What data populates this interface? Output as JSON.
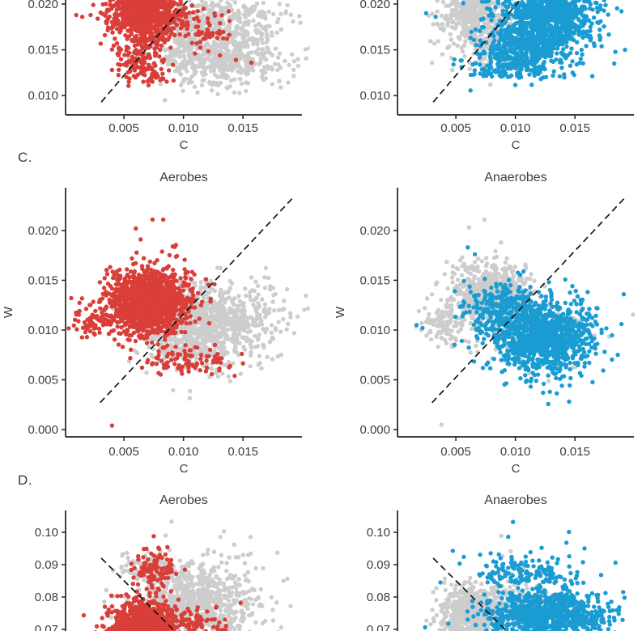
{
  "page": {
    "background": "#ffffff"
  },
  "panel_labels": {
    "c": "C.",
    "d": "D."
  },
  "colors": {
    "aerobes": "#d93e38",
    "anaerobes": "#1a9cd3",
    "background_points": "#cdcdcd",
    "reference_line": "#141414",
    "axis": "#222222",
    "text": "#3d3d3d"
  },
  "chart_data": [
    {
      "id": "top_left",
      "row": "top",
      "type": "scatter",
      "title": "",
      "xlabel": "C",
      "ylabel": "",
      "xlim": [
        0.0001,
        0.01995
      ],
      "ylim": [
        0.0079,
        0.02044
      ],
      "xticks": {
        "values": [
          0.005,
          0.01,
          0.015
        ],
        "labels": [
          "0.005",
          "0.010",
          "0.015"
        ]
      },
      "yticks": {
        "values": [
          0.02,
          0.015,
          0.01
        ],
        "labels": [
          "0.020",
          "0.015",
          "0.010"
        ]
      },
      "refline": {
        "x1": 0.0031,
        "y1": 0.0093,
        "x2": 0.0105,
        "y2": 0.0206
      },
      "clusters": [
        {
          "color": "background_points",
          "n": 500,
          "cx": 0.0112,
          "cy": 0.0172,
          "sx": 0.0019,
          "sy": 0.0021
        },
        {
          "color": "background_points",
          "n": 350,
          "cx": 0.0134,
          "cy": 0.0137,
          "sx": 0.0023,
          "sy": 0.0015
        },
        {
          "color": "background_points",
          "n": 150,
          "cx": 0.016,
          "cy": 0.0172,
          "sx": 0.0019,
          "sy": 0.0018
        },
        {
          "color": "background_points",
          "pts": [
            [
              0.0186,
              0.019
            ],
            [
              0.0192,
              0.0181
            ],
            [
              0.0179,
              0.0128
            ],
            [
              0.0171,
              0.015
            ],
            [
              0.0191,
              0.0145
            ]
          ]
        },
        {
          "color": "aerobes",
          "n": 1200,
          "cx": 0.0068,
          "cy": 0.0197,
          "sx": 0.0014,
          "sy": 0.0019
        },
        {
          "color": "aerobes",
          "n": 130,
          "cx": 0.0063,
          "cy": 0.0143,
          "sx": 0.0012,
          "sy": 0.0013
        },
        {
          "color": "aerobes",
          "n": 60,
          "cx": 0.0118,
          "cy": 0.0172,
          "sx": 0.0013,
          "sy": 0.001
        },
        {
          "color": "aerobes",
          "n": 25,
          "cx": 0.0074,
          "cy": 0.0121,
          "sx": 0.0007,
          "sy": 0.0005
        },
        {
          "color": "aerobes",
          "pts": [
            [
              0.001,
              0.0188
            ],
            [
              0.0015,
              0.0186
            ],
            [
              0.0022,
              0.0188
            ],
            [
              0.0028,
              0.0184
            ],
            [
              0.0036,
              0.0182
            ],
            [
              0.0144,
              0.0139
            ],
            [
              0.0157,
              0.0136
            ],
            [
              0.0138,
              0.0192
            ],
            [
              0.004,
              0.0128
            ]
          ]
        }
      ]
    },
    {
      "id": "top_right",
      "row": "top",
      "type": "scatter",
      "title": "",
      "xlabel": "C",
      "ylabel": "",
      "xlim": [
        0.0001,
        0.01995
      ],
      "ylim": [
        0.0079,
        0.02044
      ],
      "xticks": {
        "values": [
          0.005,
          0.01,
          0.015
        ],
        "labels": [
          "0.005",
          "0.010",
          "0.015"
        ]
      },
      "yticks": {
        "values": [
          0.02,
          0.015,
          0.01
        ],
        "labels": [
          "0.020",
          "0.015",
          "0.010"
        ]
      },
      "refline": {
        "x1": 0.0031,
        "y1": 0.0093,
        "x2": 0.0105,
        "y2": 0.0206
      },
      "clusters": [
        {
          "color": "background_points",
          "n": 420,
          "cx": 0.0066,
          "cy": 0.0187,
          "sx": 0.0013,
          "sy": 0.0015
        },
        {
          "color": "background_points",
          "n": 160,
          "cx": 0.0082,
          "cy": 0.015,
          "sx": 0.0016,
          "sy": 0.0013
        },
        {
          "color": "background_points",
          "pts": [
            [
              0.0031,
              0.0178
            ],
            [
              0.0043,
              0.0152
            ],
            [
              0.0047,
              0.0128
            ],
            [
              0.0079,
              0.0112
            ],
            [
              0.003,
              0.0136
            ]
          ]
        },
        {
          "color": "anaerobes",
          "n": 1000,
          "cx": 0.0126,
          "cy": 0.0183,
          "sx": 0.0021,
          "sy": 0.0022
        },
        {
          "color": "anaerobes",
          "n": 280,
          "cx": 0.0104,
          "cy": 0.0151,
          "sx": 0.0019,
          "sy": 0.0013
        },
        {
          "color": "anaerobes",
          "n": 110,
          "cx": 0.0096,
          "cy": 0.0129,
          "sx": 0.0019,
          "sy": 0.0007
        },
        {
          "color": "anaerobes",
          "pts": [
            [
              0.0025,
              0.019
            ],
            [
              0.0033,
              0.0186
            ],
            [
              0.0189,
              0.0192
            ],
            [
              0.0192,
              0.015
            ],
            [
              0.0048,
              0.0134
            ],
            [
              0.0183,
              0.0135
            ]
          ]
        }
      ]
    },
    {
      "id": "c_aerobes",
      "row": "c",
      "type": "scatter",
      "title": "Aerobes",
      "xlabel": "C",
      "ylabel": "W",
      "xlim": [
        0.0001,
        0.01995
      ],
      "ylim": [
        -0.00073,
        0.0243
      ],
      "xticks": {
        "values": [
          0.005,
          0.01,
          0.015
        ],
        "labels": [
          "0.005",
          "0.010",
          "0.015"
        ]
      },
      "yticks": {
        "values": [
          0.02,
          0.015,
          0.01,
          0.005,
          0.0
        ],
        "labels": [
          "0.020",
          "0.015",
          "0.010",
          "0.005",
          "0.000"
        ]
      },
      "refline": {
        "x1": 0.003,
        "y1": 0.0027,
        "x2": 0.0192,
        "y2": 0.0233
      },
      "clusters": [
        {
          "color": "background_points",
          "n": 950,
          "cx": 0.0114,
          "cy": 0.0104,
          "sx": 0.0023,
          "sy": 0.002
        },
        {
          "color": "background_points",
          "n": 120,
          "cx": 0.0162,
          "cy": 0.0112,
          "sx": 0.0017,
          "sy": 0.0017
        },
        {
          "color": "background_points",
          "pts": [
            [
              0.019,
              0.0113
            ],
            [
              0.0193,
              0.0097
            ],
            [
              0.0187,
              0.0141
            ],
            [
              0.0148,
              0.0056
            ],
            [
              0.0182,
              0.0075
            ]
          ]
        },
        {
          "color": "aerobes",
          "n": 1400,
          "cx": 0.0071,
          "cy": 0.0128,
          "sx": 0.0016,
          "sy": 0.0016
        },
        {
          "color": "aerobes",
          "n": 60,
          "cx": 0.0023,
          "cy": 0.0112,
          "sx": 0.0008,
          "sy": 0.0009
        },
        {
          "color": "aerobes",
          "n": 90,
          "cx": 0.0104,
          "cy": 0.0069,
          "sx": 0.0018,
          "sy": 0.0008
        },
        {
          "color": "aerobes",
          "pts": [
            [
              0.004,
              0.0004
            ],
            [
              0.006,
              0.0202
            ],
            [
              0.0074,
              0.0211
            ],
            [
              0.0083,
              0.0211
            ],
            [
              0.0064,
              0.0191
            ],
            [
              0.0143,
              0.0054
            ],
            [
              0.0119,
              0.0151
            ],
            [
              0.0126,
              0.0146
            ],
            [
              0.0149,
              0.0076
            ],
            [
              0.0091,
              0.0184
            ]
          ]
        }
      ]
    },
    {
      "id": "c_anaerobes",
      "row": "c",
      "type": "scatter",
      "title": "Anaerobes",
      "xlabel": "C",
      "ylabel": "W",
      "xlim": [
        0.0001,
        0.01995
      ],
      "ylim": [
        -0.00073,
        0.0243
      ],
      "xticks": {
        "values": [
          0.005,
          0.01,
          0.015
        ],
        "labels": [
          "0.005",
          "0.010",
          "0.015"
        ]
      },
      "yticks": {
        "values": [
          0.02,
          0.015,
          0.01,
          0.005,
          0.0
        ],
        "labels": [
          "0.020",
          "0.015",
          "0.010",
          "0.005",
          "0.000"
        ]
      },
      "refline": {
        "x1": 0.003,
        "y1": 0.0027,
        "x2": 0.0192,
        "y2": 0.0233
      },
      "clusters": [
        {
          "color": "background_points",
          "n": 600,
          "cx": 0.0079,
          "cy": 0.0137,
          "sx": 0.0015,
          "sy": 0.0015
        },
        {
          "color": "background_points",
          "n": 120,
          "cx": 0.0044,
          "cy": 0.0105,
          "sx": 0.001,
          "sy": 0.0012
        },
        {
          "color": "background_points",
          "n": 150,
          "cx": 0.0124,
          "cy": 0.0097,
          "sx": 0.0021,
          "sy": 0.0017
        },
        {
          "color": "background_points",
          "pts": [
            [
              0.0038,
              0.0005
            ],
            [
              0.0074,
              0.0211
            ],
            [
              0.0061,
              0.0203
            ],
            [
              0.0088,
              0.0188
            ],
            [
              0.0019,
              0.0119
            ],
            [
              0.0024,
              0.0122
            ],
            [
              0.0021,
              0.01
            ]
          ]
        },
        {
          "color": "anaerobes",
          "n": 1100,
          "cx": 0.0123,
          "cy": 0.0093,
          "sx": 0.0021,
          "sy": 0.0018
        },
        {
          "color": "anaerobes",
          "n": 220,
          "cx": 0.0089,
          "cy": 0.0124,
          "sx": 0.0017,
          "sy": 0.0013
        },
        {
          "color": "anaerobes",
          "pts": [
            [
              0.0017,
              0.0105
            ],
            [
              0.0022,
              0.0102
            ],
            [
              0.0191,
              0.0136
            ],
            [
              0.0189,
              0.0106
            ],
            [
              0.0186,
              0.0075
            ],
            [
              0.006,
              0.0183
            ],
            [
              0.0066,
              0.0176
            ]
          ]
        }
      ]
    },
    {
      "id": "d_aerobes",
      "row": "d",
      "type": "scatter",
      "title": "Aerobes",
      "xlabel": "",
      "ylabel": "",
      "xlim": [
        0.0001,
        0.01995
      ],
      "ylim": [
        0.0695,
        0.10675
      ],
      "xticks": {
        "values": [],
        "labels": []
      },
      "yticks": {
        "values": [
          0.1,
          0.09,
          0.08,
          0.07
        ],
        "labels": [
          "0.10",
          "0.09",
          "0.08",
          "0.07"
        ]
      },
      "refline": {
        "x1": 0.0031,
        "y1": 0.092,
        "x2": 0.0094,
        "y2": 0.069
      },
      "clusters": [
        {
          "color": "background_points",
          "n": 800,
          "cx": 0.0112,
          "cy": 0.079,
          "sx": 0.0025,
          "sy": 0.0062
        },
        {
          "color": "background_points",
          "n": 60,
          "cx": 0.0068,
          "cy": 0.0898,
          "sx": 0.0012,
          "sy": 0.0022
        },
        {
          "color": "background_points",
          "pts": [
            [
              0.009,
              0.1033
            ],
            [
              0.0134,
              0.1003
            ],
            [
              0.0085,
              0.099
            ],
            [
              0.0182,
              0.0706
            ],
            [
              0.015,
              0.093
            ],
            [
              0.0175,
              0.076
            ]
          ]
        },
        {
          "color": "aerobes",
          "n": 1150,
          "cx": 0.0066,
          "cy": 0.0702,
          "sx": 0.0013,
          "sy": 0.004
        },
        {
          "color": "aerobes",
          "n": 110,
          "cx": 0.0077,
          "cy": 0.0882,
          "sx": 0.0009,
          "sy": 0.0026
        },
        {
          "color": "aerobes",
          "n": 100,
          "cx": 0.01,
          "cy": 0.0722,
          "sx": 0.0018,
          "sy": 0.0022
        },
        {
          "color": "aerobes",
          "pts": [
            [
              0.0075,
              0.0988
            ],
            [
              0.0079,
              0.0952
            ],
            [
              0.0073,
              0.0934
            ],
            [
              0.0148,
              0.0782
            ],
            [
              0.0034,
              0.077
            ],
            [
              0.0112,
              0.0768
            ]
          ]
        }
      ]
    },
    {
      "id": "d_anaerobes",
      "row": "d",
      "type": "scatter",
      "title": "Anaerobes",
      "xlabel": "",
      "ylabel": "",
      "xlim": [
        0.0001,
        0.01995
      ],
      "ylim": [
        0.0695,
        0.10675
      ],
      "xticks": {
        "values": [],
        "labels": []
      },
      "yticks": {
        "values": [
          0.1,
          0.09,
          0.08,
          0.07
        ],
        "labels": [
          "0.10",
          "0.09",
          "0.08",
          "0.07"
        ]
      },
      "refline": {
        "x1": 0.0031,
        "y1": 0.092,
        "x2": 0.0094,
        "y2": 0.069
      },
      "clusters": [
        {
          "color": "background_points",
          "n": 550,
          "cx": 0.0063,
          "cy": 0.074,
          "sx": 0.0013,
          "sy": 0.0046
        },
        {
          "color": "background_points",
          "n": 200,
          "cx": 0.0092,
          "cy": 0.078,
          "sx": 0.0019,
          "sy": 0.004
        },
        {
          "color": "background_points",
          "pts": [
            [
              0.0088,
              0.0989
            ],
            [
              0.0096,
              0.0941
            ],
            [
              0.0089,
              0.0926
            ],
            [
              0.0043,
              0.0771
            ],
            [
              0.0031,
              0.0815
            ]
          ]
        },
        {
          "color": "anaerobes",
          "n": 950,
          "cx": 0.0126,
          "cy": 0.0744,
          "sx": 0.0024,
          "sy": 0.004
        },
        {
          "color": "anaerobes",
          "n": 150,
          "cx": 0.011,
          "cy": 0.0878,
          "sx": 0.0021,
          "sy": 0.0026
        },
        {
          "color": "anaerobes",
          "pts": [
            [
              0.0098,
              0.1032
            ],
            [
              0.0145,
              0.1001
            ],
            [
              0.0094,
              0.0986
            ],
            [
              0.0122,
              0.0952
            ],
            [
              0.0158,
              0.095
            ],
            [
              0.0131,
              0.0922
            ],
            [
              0.0184,
              0.0906
            ],
            [
              0.0037,
              0.0845
            ],
            [
              0.0172,
              0.0868
            ]
          ]
        }
      ]
    }
  ]
}
